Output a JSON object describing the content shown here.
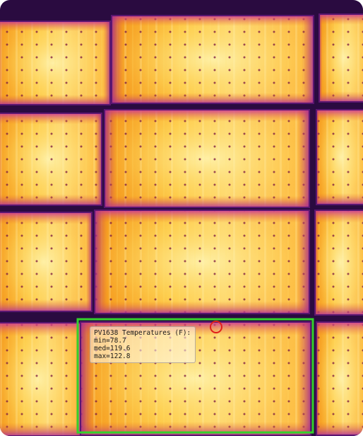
{
  "annotation": {
    "title": "PV1638 Temperatures (F):",
    "min": "min=78.7",
    "med": "med=119.6",
    "max": "max=122.8"
  },
  "colors": {
    "highlight_box": "#34d12c",
    "hotspot_marker": "#e0201b",
    "panel_hot": "#fff2a8",
    "panel_warm": "#ffb020",
    "panel_mid": "#f07010",
    "panel_edge": "#8a1a9a",
    "gap": "#2a0b40"
  },
  "image": {
    "type": "thermal-aerial-solar-array",
    "palette": "inferno"
  }
}
